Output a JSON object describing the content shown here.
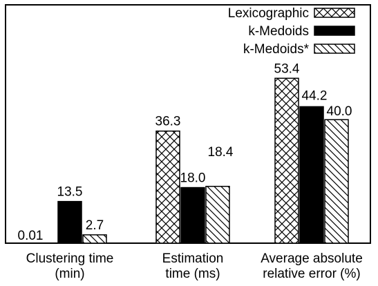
{
  "chart_data": {
    "type": "bar",
    "categories": [
      [
        "Clustering time",
        "(min)"
      ],
      [
        "Estimation",
        "time (ms)"
      ],
      [
        "Average absolute",
        "relative error (%)"
      ]
    ],
    "series": [
      {
        "name": "Lexicographic",
        "values": [
          0.01,
          36.3,
          53.4
        ],
        "labels": [
          "0.01",
          "36.3",
          "53.4"
        ],
        "pattern": "crosshatch",
        "color": "#ffffff"
      },
      {
        "name": "k-Medoids",
        "values": [
          13.5,
          18.0,
          44.2
        ],
        "labels": [
          "13.5",
          "18.0",
          "44.2"
        ],
        "pattern": "solid",
        "color": "#000000"
      },
      {
        "name": "k-Medoids*",
        "values": [
          2.7,
          18.4,
          40.0
        ],
        "labels": [
          "2.7",
          "18.4",
          "40.0"
        ],
        "pattern": "diagonal",
        "color": "#ffffff"
      }
    ],
    "legend_position": "top-right",
    "grid": false
  }
}
